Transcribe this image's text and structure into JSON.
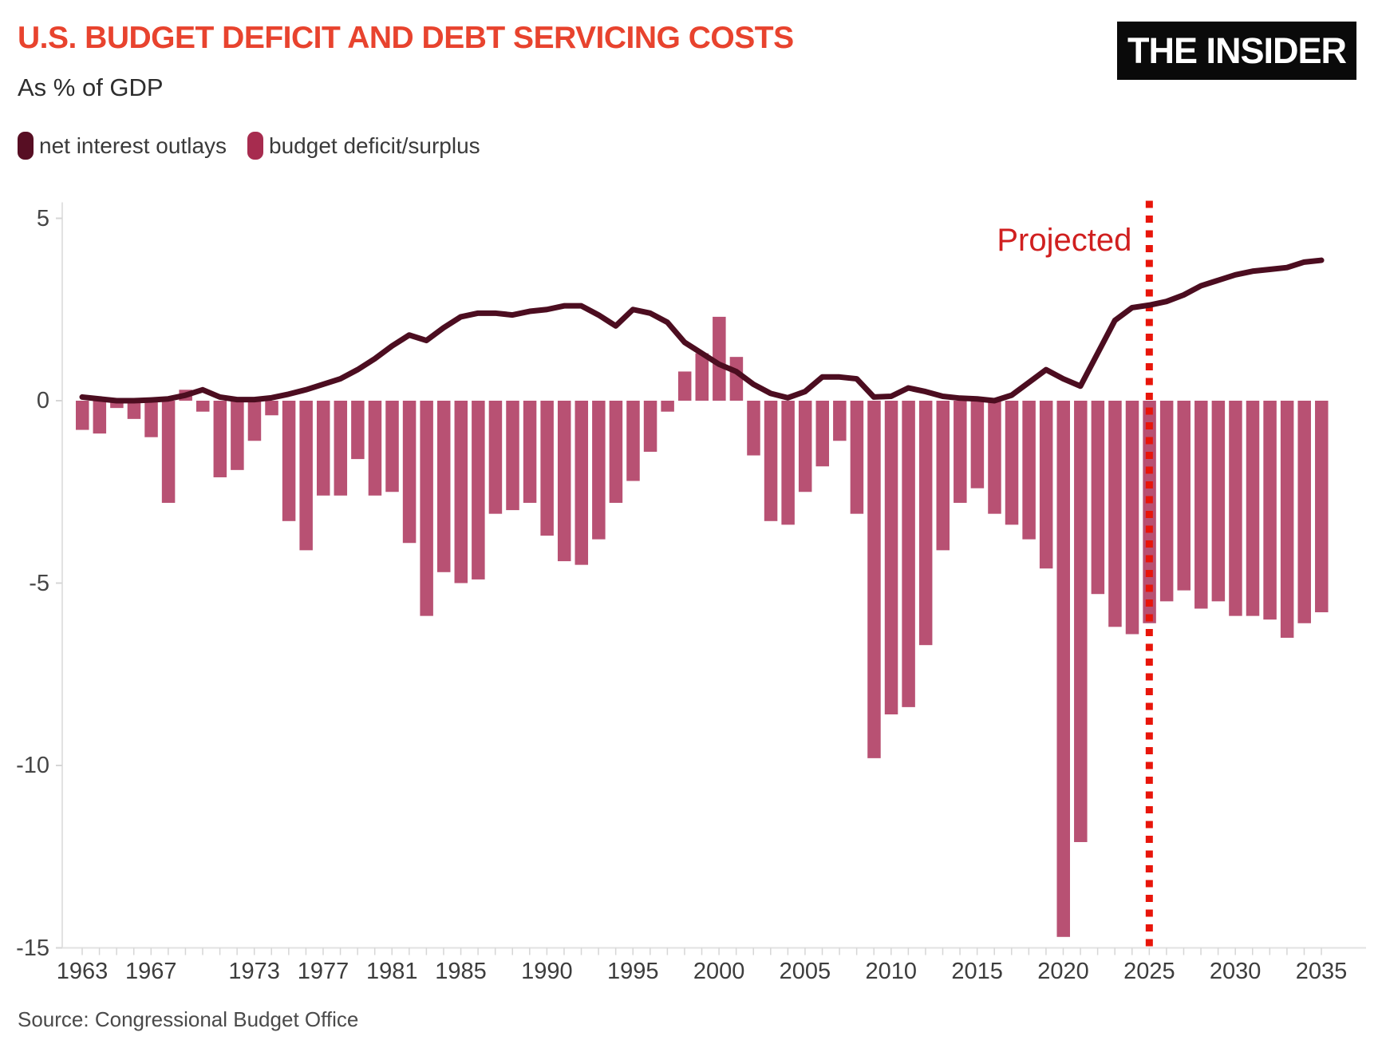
{
  "header": {
    "title": "U.S. BUDGET DEFICIT AND DEBT SERVICING COSTS",
    "title_color": "#e8432e",
    "subtitle": "As % of GDP",
    "logo": "THE INSIDER"
  },
  "legend": [
    {
      "label": "net interest outlays",
      "color": "#570e23"
    },
    {
      "label": "budget deficit/surplus",
      "color": "#a72c4f"
    }
  ],
  "annotations": {
    "projected_label": "Projected",
    "projected_color": "#d01f1f",
    "projection_line_color": "#e8150a",
    "projection_start_year": 2025
  },
  "source": "Source: Congressional Budget Office",
  "colors": {
    "bar": "#b85173",
    "line": "#4c0d20",
    "axis": "#e2e2e2",
    "tick": "#d6d6d6"
  },
  "chart_data": {
    "type": "bar+line",
    "title": "U.S. budget deficit and debt servicing costs",
    "ylabel": "As % of GDP",
    "ylim": [
      -15,
      5
    ],
    "yticks": [
      5,
      0,
      -5,
      -10,
      -15
    ],
    "ytick_labels": [
      "5",
      "0",
      "-5",
      "-10",
      "-15"
    ],
    "xticks": [
      1963,
      1967,
      1973,
      1977,
      1981,
      1985,
      1990,
      1995,
      2000,
      2005,
      2010,
      2015,
      2020,
      2025,
      2030,
      2035
    ],
    "x": [
      1963,
      1964,
      1965,
      1966,
      1967,
      1968,
      1969,
      1970,
      1971,
      1972,
      1973,
      1974,
      1975,
      1976,
      1977,
      1978,
      1979,
      1980,
      1981,
      1982,
      1983,
      1984,
      1985,
      1986,
      1987,
      1988,
      1989,
      1990,
      1991,
      1992,
      1993,
      1994,
      1995,
      1996,
      1997,
      1998,
      1999,
      2000,
      2001,
      2002,
      2003,
      2004,
      2005,
      2006,
      2007,
      2008,
      2009,
      2010,
      2011,
      2012,
      2013,
      2014,
      2015,
      2016,
      2017,
      2018,
      2019,
      2020,
      2021,
      2022,
      2023,
      2024,
      2025,
      2026,
      2027,
      2028,
      2029,
      2030,
      2031,
      2032,
      2033,
      2034,
      2035
    ],
    "series": [
      {
        "name": "budget deficit/surplus",
        "type": "bar",
        "values": [
          -0.8,
          -0.9,
          -0.2,
          -0.5,
          -1.0,
          -2.8,
          0.3,
          -0.3,
          -2.1,
          -1.9,
          -1.1,
          -0.4,
          -3.3,
          -4.1,
          -2.6,
          -2.6,
          -1.6,
          -2.6,
          -2.5,
          -3.9,
          -5.9,
          -4.7,
          -5.0,
          -4.9,
          -3.1,
          -3.0,
          -2.8,
          -3.7,
          -4.4,
          -4.5,
          -3.8,
          -2.8,
          -2.2,
          -1.4,
          -0.3,
          0.8,
          1.3,
          2.3,
          1.2,
          -1.5,
          -3.3,
          -3.4,
          -2.5,
          -1.8,
          -1.1,
          -3.1,
          -9.8,
          -8.6,
          -8.4,
          -6.7,
          -4.1,
          -2.8,
          -2.4,
          -3.1,
          -3.4,
          -3.8,
          -4.6,
          -14.7,
          -12.1,
          -5.3,
          -6.2,
          -6.4,
          -6.1,
          -5.5,
          -5.2,
          -5.7,
          -5.5,
          -5.9,
          -5.9,
          -6.0,
          -6.5,
          -6.1,
          -5.8
        ]
      },
      {
        "name": "net interest outlays",
        "type": "line",
        "values": [
          0.1,
          0.05,
          0.0,
          0.0,
          0.02,
          0.05,
          0.15,
          0.3,
          0.1,
          0.03,
          0.03,
          0.08,
          0.18,
          0.3,
          0.45,
          0.6,
          0.85,
          1.15,
          1.5,
          1.8,
          1.65,
          2.0,
          2.3,
          2.4,
          2.4,
          2.35,
          2.45,
          2.5,
          2.6,
          2.6,
          2.35,
          2.05,
          2.5,
          2.4,
          2.15,
          1.6,
          1.3,
          1.0,
          0.8,
          0.45,
          0.2,
          0.08,
          0.25,
          0.65,
          0.65,
          0.6,
          0.1,
          0.12,
          0.35,
          0.25,
          0.12,
          0.07,
          0.05,
          0.0,
          0.15,
          0.5,
          0.85,
          0.6,
          0.4,
          1.3,
          2.2,
          2.55,
          2.62,
          2.72,
          2.9,
          3.15,
          3.3,
          3.45,
          3.55,
          3.6,
          3.65,
          3.8,
          3.85
        ]
      }
    ],
    "grid": false,
    "legend_position": "top-left"
  }
}
